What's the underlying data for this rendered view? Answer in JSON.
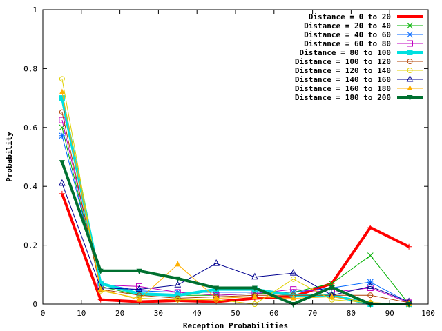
{
  "chart_data": {
    "type": "line",
    "title": "",
    "xlabel": "Reception Probabilities",
    "ylabel": "Probability",
    "xlim": [
      0,
      100
    ],
    "ylim": [
      0,
      1
    ],
    "xticks": [
      0,
      10,
      20,
      30,
      40,
      50,
      60,
      70,
      80,
      90,
      100
    ],
    "yticks": [
      0,
      0.2,
      0.4,
      0.6,
      0.8,
      1
    ],
    "ytick_labels": [
      "0",
      "0.2",
      "0.4",
      "0.6",
      "0.8",
      "1"
    ],
    "grid": false,
    "legend_position": "top-right",
    "x": [
      5,
      15,
      25,
      35,
      45,
      55,
      65,
      75,
      85,
      95
    ],
    "series": [
      {
        "name": "Distance = 0 to 20",
        "color": "#ff0000",
        "marker": "plus",
        "width": 4,
        "values": [
          0.375,
          0.015,
          0.008,
          0.012,
          0.008,
          0.02,
          0.025,
          0.07,
          0.26,
          0.195
        ]
      },
      {
        "name": "Distance = 20 to 40",
        "color": "#00b000",
        "marker": "cross",
        "width": 1,
        "values": [
          0.6,
          0.06,
          0.03,
          0.03,
          0.03,
          0.035,
          0.04,
          0.07,
          0.165,
          0.0
        ]
      },
      {
        "name": "Distance = 40 to 60",
        "color": "#0066ff",
        "marker": "star",
        "width": 1,
        "values": [
          0.572,
          0.07,
          0.045,
          0.04,
          0.04,
          0.04,
          0.04,
          0.055,
          0.075,
          0.005
        ]
      },
      {
        "name": "Distance = 60 to 80",
        "color": "#c000c0",
        "marker": "square",
        "width": 1,
        "values": [
          0.625,
          0.065,
          0.06,
          0.04,
          0.03,
          0.035,
          0.05,
          0.04,
          0.055,
          0.005
        ]
      },
      {
        "name": "Distance = 80 to 100",
        "color": "#00e0e0",
        "marker": "fsquare",
        "width": 4,
        "values": [
          0.7,
          0.07,
          0.035,
          0.03,
          0.05,
          0.05,
          0.03,
          0.03,
          0.0,
          0.0
        ]
      },
      {
        "name": "Distance = 100 to 120",
        "color": "#b04000",
        "marker": "circle",
        "width": 1,
        "values": [
          0.652,
          0.05,
          0.03,
          0.02,
          0.025,
          0.03,
          0.03,
          0.03,
          0.03,
          0.005
        ]
      },
      {
        "name": "Distance = 120 to 140",
        "color": "#e0d000",
        "marker": "circle",
        "width": 1,
        "values": [
          0.765,
          0.045,
          0.02,
          0.015,
          0.015,
          0.0,
          0.085,
          0.015,
          0.005,
          0.0
        ]
      },
      {
        "name": "Distance = 140 to 160",
        "color": "#000090",
        "marker": "triangle",
        "width": 1,
        "values": [
          0.41,
          0.055,
          0.05,
          0.065,
          0.138,
          0.092,
          0.105,
          0.03,
          0.06,
          0.008
        ]
      },
      {
        "name": "Distance = 160 to 180",
        "color": "#ffb000",
        "marker": "ftriangle",
        "width": 1,
        "values": [
          0.72,
          0.05,
          0.015,
          0.135,
          0.02,
          0.025,
          0.02,
          0.025,
          0.005,
          0.0
        ]
      },
      {
        "name": "Distance = 180 to 200",
        "color": "#007030",
        "marker": "ftriangle-down",
        "width": 4,
        "values": [
          0.482,
          0.113,
          0.113,
          0.087,
          0.055,
          0.055,
          0.0,
          0.057,
          0.0,
          0.0
        ]
      }
    ]
  }
}
